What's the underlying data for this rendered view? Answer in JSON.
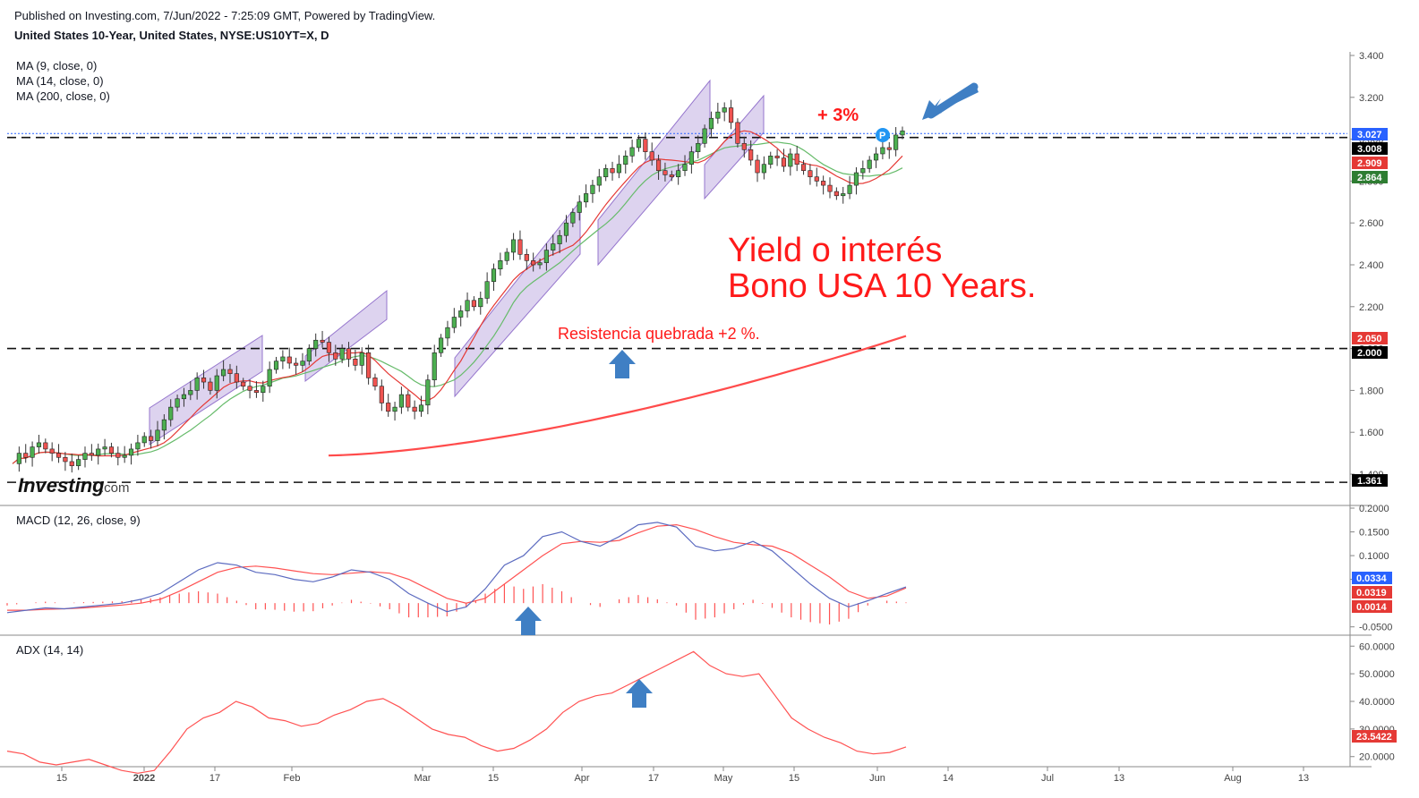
{
  "header": {
    "published": "Published on Investing.com, 7/Jun/2022 - 7:25:09 GMT, Powered by TradingView.",
    "symbol": "United States 10-Year, United States, NYSE:US10YT=X, D"
  },
  "legend": {
    "ma9": "MA (9, close, 0)",
    "ma14": "MA (14, close, 0)",
    "ma200": "MA (200, close, 0)"
  },
  "annotations": {
    "title_line1": "Yield o interés",
    "title_line2": "Bono USA 10 Years.",
    "resistance": "Resistencia quebrada  +2 %.",
    "plus3": "+ 3%",
    "logo_main": "Investing",
    "logo_suffix": ".com",
    "p_marker": "P"
  },
  "colors": {
    "up": "#26a69a",
    "up_fill": "#4caf50",
    "down": "#ef5350",
    "channel_fill": "#b39ddb",
    "ma9": "#e53935",
    "ma14": "#66bb6a",
    "ma200": "#ff4b4b",
    "macd": "#5c6bc0",
    "signal": "#ff5252",
    "adx": "#ff5252",
    "arrow": "#3f7fc4",
    "annotation": "#ff1a1a"
  },
  "chart_data": [
    {
      "type": "candlestick",
      "title": "United States 10-Year, United States, NYSE:US10YT=X, D",
      "y_ticks": [
        "3.400",
        "3.200",
        "3.000",
        "2.800",
        "2.600",
        "2.400",
        "2.200",
        "2.000",
        "1.800",
        "1.600",
        "1.400"
      ],
      "ylim": [
        1.36,
        3.43
      ],
      "x_ticks": [
        "15",
        "2022",
        "17",
        "Feb",
        "Mar",
        "15",
        "Apr",
        "17",
        "May",
        "15",
        "Jun",
        "14",
        "Jul",
        "13",
        "Aug",
        "13"
      ],
      "price_labels": [
        {
          "value": "3.027",
          "color": "#2962ff"
        },
        {
          "value": "3.008",
          "color": "#000000"
        },
        {
          "value": "2.909",
          "color": "#e53935"
        },
        {
          "value": "2.864",
          "color": "#2e7d32"
        },
        {
          "value": "2.050",
          "color": "#e53935"
        },
        {
          "value": "2.000",
          "color": "#000000"
        },
        {
          "value": "1.361",
          "color": "#000000"
        }
      ],
      "horizontal_lines": [
        3.008,
        2.0,
        1.361
      ],
      "close_series": [
        1.45,
        1.5,
        1.48,
        1.53,
        1.55,
        1.52,
        1.5,
        1.48,
        1.46,
        1.44,
        1.47,
        1.5,
        1.49,
        1.52,
        1.53,
        1.5,
        1.48,
        1.49,
        1.52,
        1.55,
        1.58,
        1.56,
        1.61,
        1.66,
        1.72,
        1.76,
        1.78,
        1.8,
        1.86,
        1.84,
        1.8,
        1.87,
        1.9,
        1.88,
        1.84,
        1.82,
        1.8,
        1.79,
        1.82,
        1.9,
        1.94,
        1.96,
        1.93,
        1.92,
        1.94,
        2.0,
        2.04,
        2.03,
        1.98,
        1.95,
        2.0,
        1.95,
        1.92,
        1.98,
        1.86,
        1.82,
        1.74,
        1.7,
        1.72,
        1.78,
        1.72,
        1.7,
        1.73,
        1.85,
        1.98,
        2.05,
        2.1,
        2.15,
        2.18,
        2.23,
        2.2,
        2.24,
        2.32,
        2.38,
        2.42,
        2.46,
        2.52,
        2.45,
        2.42,
        2.4,
        2.41,
        2.47,
        2.5,
        2.54,
        2.6,
        2.65,
        2.7,
        2.74,
        2.78,
        2.82,
        2.86,
        2.84,
        2.88,
        2.92,
        2.96,
        3.0,
        2.94,
        2.9,
        2.85,
        2.83,
        2.82,
        2.85,
        2.88,
        2.94,
        2.98,
        3.05,
        3.1,
        3.13,
        3.15,
        3.08,
        2.98,
        2.95,
        2.9,
        2.84,
        2.88,
        2.92,
        2.91,
        2.87,
        2.93,
        2.88,
        2.85,
        2.82,
        2.8,
        2.78,
        2.75,
        2.73,
        2.74,
        2.78,
        2.84,
        2.86,
        2.9,
        2.93,
        2.96,
        2.95,
        3.02,
        3.04
      ]
    },
    {
      "type": "line",
      "title": "MACD (12, 26, close, 9)",
      "y_ticks": [
        "0.2000",
        "0.1500",
        "0.1000",
        "0.0500",
        "-0.0500"
      ],
      "ylim": [
        -0.06,
        0.2
      ],
      "value_labels": [
        {
          "value": "0.0334",
          "color": "#2962ff"
        },
        {
          "value": "0.0319",
          "color": "#e53935"
        },
        {
          "value": "0.0014",
          "color": "#e53935"
        }
      ],
      "series": [
        {
          "name": "MACD",
          "values": [
            -0.02,
            -0.015,
            -0.01,
            -0.012,
            -0.008,
            -0.004,
            0.0,
            0.008,
            0.02,
            0.045,
            0.07,
            0.085,
            0.08,
            0.065,
            0.06,
            0.05,
            0.045,
            0.055,
            0.07,
            0.065,
            0.05,
            0.02,
            0.0,
            -0.018,
            -0.008,
            0.03,
            0.08,
            0.1,
            0.14,
            0.15,
            0.13,
            0.12,
            0.14,
            0.165,
            0.17,
            0.16,
            0.12,
            0.11,
            0.115,
            0.13,
            0.11,
            0.075,
            0.04,
            0.01,
            -0.008,
            0.005,
            0.02,
            0.034
          ]
        },
        {
          "name": "Signal",
          "values": [
            -0.015,
            -0.015,
            -0.013,
            -0.012,
            -0.01,
            -0.007,
            -0.004,
            0.0,
            0.008,
            0.025,
            0.045,
            0.065,
            0.075,
            0.078,
            0.074,
            0.068,
            0.062,
            0.06,
            0.063,
            0.066,
            0.063,
            0.05,
            0.03,
            0.01,
            0.0,
            0.01,
            0.04,
            0.07,
            0.1,
            0.125,
            0.13,
            0.128,
            0.132,
            0.148,
            0.162,
            0.165,
            0.155,
            0.14,
            0.128,
            0.123,
            0.12,
            0.105,
            0.08,
            0.055,
            0.025,
            0.01,
            0.015,
            0.032
          ]
        },
        {
          "name": "Histogram",
          "values": [
            -0.005,
            0.0,
            0.003,
            0.0,
            0.002,
            0.003,
            0.004,
            0.008,
            0.012,
            0.02,
            0.025,
            0.02,
            0.005,
            -0.013,
            -0.014,
            -0.018,
            -0.017,
            -0.005,
            0.007,
            -0.001,
            -0.013,
            -0.03,
            -0.03,
            -0.028,
            -0.008,
            0.02,
            0.04,
            0.03,
            0.04,
            0.025,
            0.0,
            -0.008,
            0.008,
            0.017,
            0.008,
            -0.005,
            -0.035,
            -0.03,
            -0.013,
            0.007,
            -0.01,
            -0.03,
            -0.04,
            -0.045,
            -0.033,
            -0.005,
            0.005,
            0.0014
          ]
        }
      ]
    },
    {
      "type": "line",
      "title": "ADX (14, 14)",
      "y_ticks": [
        "60.0000",
        "50.0000",
        "40.0000",
        "30.0000",
        "20.0000"
      ],
      "ylim": [
        17,
        63
      ],
      "value_labels": [
        {
          "value": "23.5422",
          "color": "#e53935"
        }
      ],
      "series": [
        {
          "name": "ADX",
          "values": [
            22,
            21,
            18,
            17,
            18,
            19,
            17,
            15,
            14,
            15,
            22,
            30,
            34,
            36,
            40,
            38,
            34,
            33,
            31,
            32,
            35,
            37,
            40,
            41,
            38,
            34,
            30,
            28,
            27,
            24,
            22,
            23,
            26,
            30,
            36,
            40,
            42,
            43,
            46,
            49,
            52,
            55,
            58,
            53,
            50,
            49,
            50,
            42,
            34,
            30,
            27,
            25,
            22,
            21,
            21.5,
            23.5
          ]
        }
      ]
    }
  ]
}
